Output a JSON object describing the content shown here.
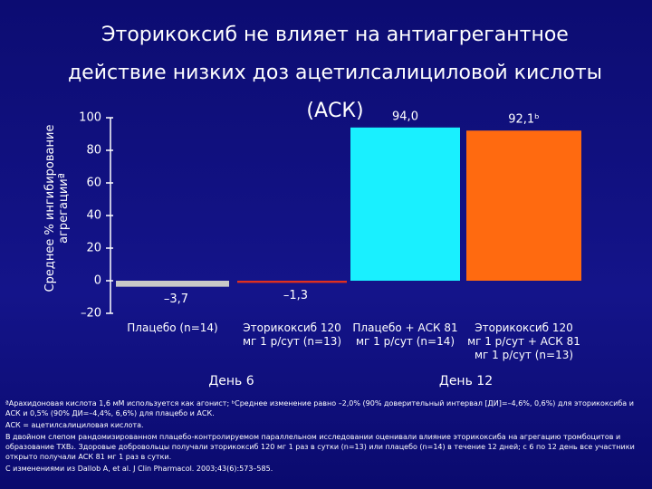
{
  "chart_data": {
    "type": "bar",
    "title": "Эторикоксиб не влияет на антиагрегантное действие низких доз ацетилсалициловой кислоты (АСК)",
    "y_label": "Среднее % ингибирование агрегацииª",
    "categories": [
      "Плацебо (n=14)",
      "Эторикоксиб 120 мг 1 р/сут (n=13)",
      "Плацебо + АСК 81 мг 1 р/сут (n=14)",
      "Эторикоксиб 120 мг 1 р/сут + АСК 81 мг 1 р/сут (n=13)"
    ],
    "values": [
      -3.7,
      -1.3,
      94.0,
      92.1
    ],
    "value_labels": [
      "–3,7",
      "–1,3",
      "94,0",
      "92,1ᵇ"
    ],
    "colors": [
      "#c8c8c8",
      "#e0301e",
      "#19f0ff",
      "#ff6a10"
    ],
    "groups": [
      "День 6",
      "День 12"
    ],
    "ylim": [
      -20,
      100
    ],
    "yticks": [
      {
        "value": -20,
        "label": "–20"
      },
      0,
      20,
      40,
      60,
      80,
      100
    ],
    "grid": false,
    "footnotes": [
      "ªАрахидоновая кислота 1,6 мМ используется как агонист; ᵇСреднее изменение равно –2,0% (90% доверительный интервал [ДИ]=–4,6%, 0,6%) для эторикоксиба и АСК и 0,5% (90% ДИ=–4,4%, 6,6%) для плацебо и АСК.",
      "АСК = ацетилсалициловая кислота.",
      "В двойном слепом рандомизированном плацебо-контролируемом параллельном исследовании оценивали влияние эторикоксиба на агрегацию тромбоцитов и образование TXB₂. Здоровые добровольцы получали эторикоксиб 120 мг 1 раз в сутки (n=13) или плацебо (n=14) в течение 12 дней; с 6 по 12 день все участники открыто получали АСК 81 мг 1 раз в сутки.",
      "С изменениями из Dallob A, et al. J Clin Pharmacol. 2003;43(6):573–585."
    ]
  }
}
